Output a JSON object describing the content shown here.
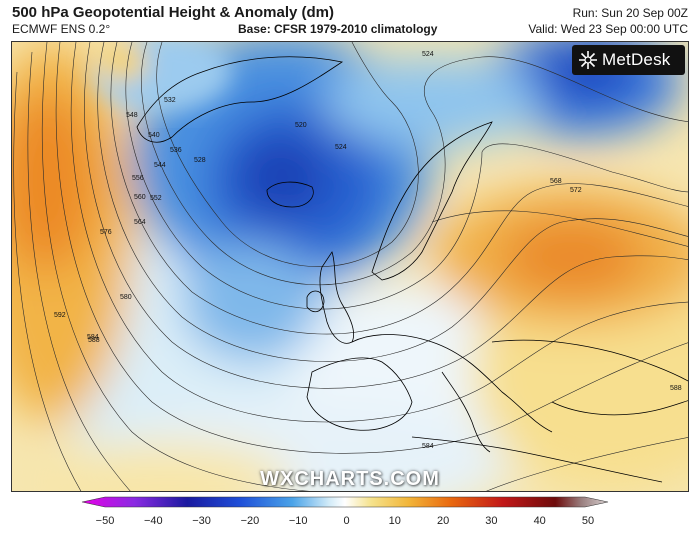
{
  "header": {
    "title": "500 hPa Geopotential Height & Anomaly (dm)",
    "model": "ECMWF ENS 0.2°",
    "base": "Base: CFSR 1979-2010 climatology",
    "run": "Run: Sun 20 Sep 00Z",
    "valid": "Valid: Wed 23 Sep 00:00 UTC"
  },
  "branding": {
    "logo": "MetDesk",
    "watermark": "WXCHARTS.COM"
  },
  "contour_labels": [
    "524",
    "520",
    "524",
    "528",
    "532",
    "536",
    "540",
    "544",
    "548",
    "552",
    "556",
    "560",
    "564",
    "568",
    "572",
    "576",
    "580",
    "584",
    "588",
    "592",
    "584",
    "588"
  ],
  "colorbar": {
    "ticks": [
      "−50",
      "−40",
      "−30",
      "−20",
      "−10",
      "0",
      "10",
      "20",
      "30",
      "40",
      "50"
    ],
    "colors": [
      "#e600e6",
      "#8a2be2",
      "#1a1aa0",
      "#1f4fd8",
      "#4aa3e8",
      "#b4dcf5",
      "#ffffff",
      "#f5e28c",
      "#f2b63a",
      "#e96a10",
      "#c21818",
      "#6e0c0c",
      "#b0a0a0"
    ]
  }
}
